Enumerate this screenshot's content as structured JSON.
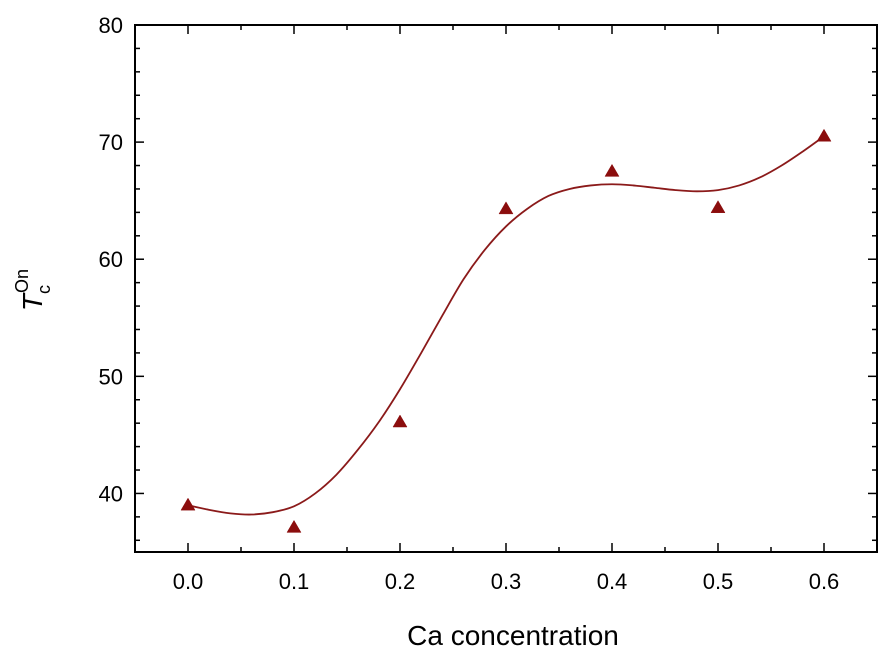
{
  "chart_data": {
    "type": "scatter",
    "xlabel": "Ca concentration",
    "ylabel": {
      "main": "T",
      "sub": "c",
      "sup": "On"
    },
    "xlim": [
      -0.05,
      0.65
    ],
    "ylim": [
      35,
      80
    ],
    "xticks": [
      0.0,
      0.1,
      0.2,
      0.3,
      0.4,
      0.5,
      0.6
    ],
    "xtick_labels": [
      "0.0",
      "0.1",
      "0.2",
      "0.3",
      "0.4",
      "0.5",
      "0.6"
    ],
    "yticks": [
      40,
      50,
      60,
      70,
      80
    ],
    "ytick_labels": [
      "40",
      "50",
      "60",
      "70",
      "80"
    ],
    "grid": false,
    "series": [
      {
        "marker": "triangle",
        "color": "#8b0d0d",
        "x": [
          0.0,
          0.1,
          0.2,
          0.3,
          0.4,
          0.5,
          0.6
        ],
        "y": [
          39.0,
          37.1,
          46.1,
          64.3,
          67.5,
          64.4,
          70.5
        ]
      }
    ],
    "fit_curve": {
      "color": "#8b1a1a",
      "x": [
        0.0,
        0.02,
        0.04,
        0.06,
        0.08,
        0.1,
        0.12,
        0.14,
        0.16,
        0.18,
        0.2,
        0.22,
        0.24,
        0.26,
        0.28,
        0.3,
        0.32,
        0.34,
        0.36,
        0.38,
        0.4,
        0.42,
        0.44,
        0.46,
        0.48,
        0.5,
        0.52,
        0.54,
        0.56,
        0.58,
        0.6
      ],
      "y": [
        39.0,
        38.6,
        38.3,
        38.2,
        38.4,
        38.9,
        40.0,
        41.6,
        43.7,
        46.1,
        48.9,
        52.0,
        55.2,
        58.3,
        60.8,
        62.8,
        64.3,
        65.4,
        66.0,
        66.3,
        66.4,
        66.3,
        66.1,
        65.9,
        65.8,
        65.9,
        66.3,
        67.0,
        68.0,
        69.2,
        70.5
      ]
    }
  }
}
